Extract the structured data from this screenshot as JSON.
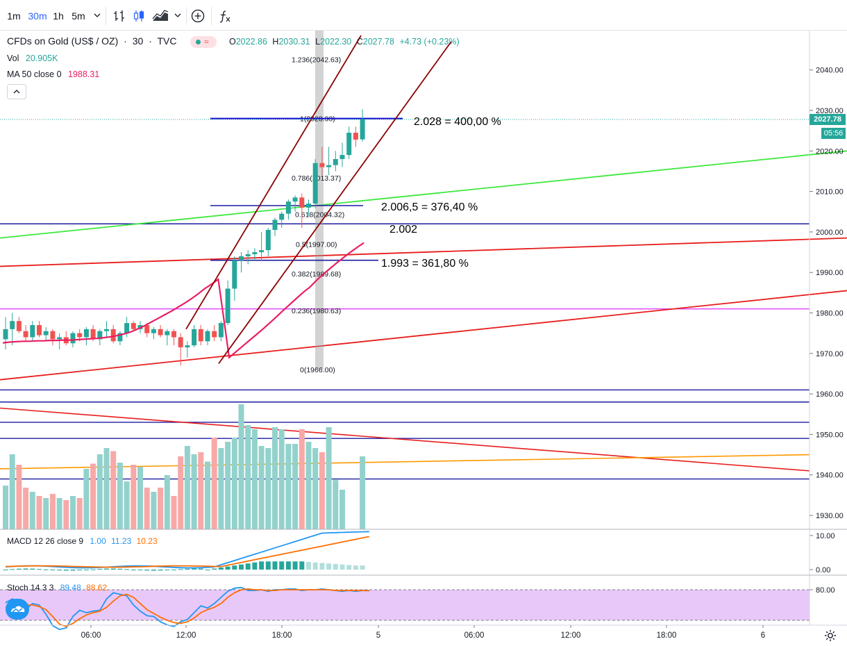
{
  "toolbar": {
    "intervals": [
      "1m",
      "30m",
      "1h",
      "5m"
    ],
    "active_interval": "30m",
    "icons": [
      "chevron-down-icon",
      "bar-chart-icon",
      "candles-icon",
      "area-chart-icon",
      "chevron-down-icon",
      "add-indicator-icon",
      "fx-icon"
    ]
  },
  "legend": {
    "symbol": "CFDs on Gold (US$ / OZ)",
    "interval": "30",
    "source": "TVC",
    "open_label": "O",
    "open": "2022.86",
    "high_label": "H",
    "high": "2030.31",
    "low_label": "L",
    "low": "2022.30",
    "close_label": "C",
    "close": "2027.78",
    "change": "+4.73 (+0.23%)",
    "vol_label": "Vol",
    "vol_value": "20.905K",
    "ma_label": "MA 50 close 0",
    "ma_value": "1988.31",
    "collapse_glyph": "^"
  },
  "price_axis": {
    "ticks": [
      "2040.00",
      "2030.00",
      "2020.00",
      "2010.00",
      "2000.00",
      "1990.00",
      "1980.00",
      "1970.00",
      "1960.00",
      "1950.00",
      "1940.00",
      "1930.00"
    ],
    "last_price": "2027.78",
    "countdown": "05:56"
  },
  "annotations": {
    "a1": "2.028 = 400,00 %",
    "a2": "2.006,5 = 376,40 %",
    "a3": "2.002",
    "a4": "1.993 = 361,80 %"
  },
  "fib_labels": {
    "f1236": "1.236(2042.63)",
    "f1": "1(2028.00)",
    "f786": "0.786(2013.37)",
    "f618": "0.618(2004.32)",
    "f5": "0.5(1997.00)",
    "f382": "0.382(1989.68)",
    "f236": "0.236(1980.63)",
    "f0": "0(1966.00)"
  },
  "macd": {
    "label": "MACD 12 26 close 9",
    "v1": "1.00",
    "v2": "11.23",
    "v3": "10.23",
    "ticks": [
      "10.00",
      "0.00"
    ]
  },
  "stoch": {
    "label": "Stoch 14 3 3",
    "v1": "89.48",
    "v2": "88.62",
    "ticks": [
      "80.00"
    ]
  },
  "time_axis": {
    "ticks": [
      "06:00",
      "12:00",
      "18:00",
      "5",
      "06:00",
      "12:00",
      "18:00",
      "6"
    ]
  },
  "colors": {
    "up": "#26a69a",
    "down": "#ef5350",
    "ma": "#e91e63",
    "fib_gray": "#9e9e9e",
    "blue_level": "#1a1aa0",
    "red_line": "#e81c1c",
    "green_line": "#3ce83c",
    "channel": "#8b0000",
    "orange": "#ff9800",
    "magenta": "#e040fb",
    "stoch_bg": "#e8c8f8"
  },
  "chart_data": {
    "type": "candlestick",
    "series": [
      {
        "name": "CFDs on Gold (US$ / OZ)",
        "ohlc": [
          [
            1973.5,
            1979,
            1971,
            1976
          ],
          [
            1976,
            1980,
            1972,
            1978
          ],
          [
            1978,
            1979,
            1975,
            1975.5
          ],
          [
            1975.5,
            1977,
            1973,
            1974
          ],
          [
            1974,
            1978,
            1973,
            1977
          ],
          [
            1977,
            1978,
            1974,
            1974.5
          ],
          [
            1974.5,
            1976.5,
            1973,
            1975.5
          ],
          [
            1975.5,
            1976,
            1972,
            1973.5
          ],
          [
            1973.5,
            1975,
            1971,
            1974
          ],
          [
            1974,
            1975.5,
            1972,
            1972.5
          ],
          [
            1972.5,
            1975.5,
            1971.5,
            1975
          ],
          [
            1975,
            1976,
            1973,
            1974
          ],
          [
            1974,
            1976.5,
            1972,
            1976
          ],
          [
            1976,
            1977,
            1973,
            1973.5
          ],
          [
            1973.5,
            1976,
            1972,
            1975.5
          ],
          [
            1975.5,
            1978,
            1974,
            1976
          ],
          [
            1976,
            1977,
            1972.5,
            1973
          ],
          [
            1973,
            1975.5,
            1972,
            1975
          ],
          [
            1975,
            1979,
            1974,
            1977.5
          ],
          [
            1977.5,
            1978,
            1975.5,
            1976
          ],
          [
            1976,
            1978,
            1975,
            1977
          ],
          [
            1977,
            1977.5,
            1974,
            1975
          ],
          [
            1975,
            1976.5,
            1973.5,
            1976
          ],
          [
            1976,
            1977,
            1974,
            1974.5
          ],
          [
            1974.5,
            1976,
            1972,
            1975.5
          ],
          [
            1975.5,
            1976,
            1972,
            1974
          ],
          [
            1974,
            1975,
            1967,
            1971.5
          ],
          [
            1971.5,
            1973,
            1969,
            1972
          ],
          [
            1972,
            1977,
            1971.5,
            1976
          ],
          [
            1976,
            1977,
            1972,
            1973
          ],
          [
            1973,
            1976,
            1972,
            1975.5
          ],
          [
            1975.5,
            1977,
            1973,
            1974
          ],
          [
            1974,
            1978,
            1973,
            1977.5
          ],
          [
            1977.5,
            1988,
            1977,
            1986
          ],
          [
            1986,
            1994,
            1983,
            1993
          ],
          [
            1993,
            1995,
            1990,
            1994
          ],
          [
            1994,
            1995.5,
            1992,
            1994.5
          ],
          [
            1994.5,
            1996,
            1993,
            1995
          ],
          [
            1995,
            2000,
            1993,
            1995.5
          ],
          [
            1995.5,
            2001,
            1994,
            2000.5
          ],
          [
            2000.5,
            2003.5,
            1999,
            2003
          ],
          [
            2003,
            2005,
            2001,
            2004.5
          ],
          [
            2004.5,
            2008,
            2003,
            2007.5
          ],
          [
            2007.5,
            2009,
            2005,
            2008.5
          ],
          [
            2008.5,
            2009.5,
            2001,
            2006
          ],
          [
            2006,
            2008,
            2004,
            2007
          ],
          [
            2007,
            2018,
            2006,
            2017
          ],
          [
            2017,
            2021,
            2014,
            2016
          ],
          [
            2016,
            2021,
            2014,
            2016.5
          ],
          [
            2016.5,
            2020,
            2015,
            2018
          ],
          [
            2018,
            2022,
            2016,
            2019
          ],
          [
            2019,
            2026,
            2018,
            2024.5
          ],
          [
            2024.5,
            2026,
            2021,
            2022.8
          ],
          [
            2022.86,
            2030.31,
            2022.3,
            2027.78
          ]
        ],
        "volume_rel": [
          0.42,
          0.72,
          0.62,
          0.4,
          0.36,
          0.32,
          0.3,
          0.34,
          0.3,
          0.28,
          0.32,
          0.3,
          0.58,
          0.63,
          0.72,
          0.78,
          0.75,
          0.64,
          0.46,
          0.62,
          0.6,
          0.4,
          0.36,
          0.4,
          0.52,
          0.32,
          0.7,
          0.8,
          0.72,
          0.74,
          0.65,
          0.88,
          0.78,
          0.84,
          0.88,
          1.2,
          1.0,
          0.96,
          0.8,
          0.78,
          0.98,
          0.96,
          0.82,
          0.82,
          0.96,
          0.84,
          0.78,
          0.74,
          0.98,
          0.48,
          0.38,
          0.0,
          0.0,
          0.7
        ]
      }
    ],
    "ma50": [
      1972.6,
      1972.8,
      1972.9,
      1973.0,
      1973.0,
      1973.1,
      1973.1,
      1973.2,
      1973.2,
      1973.3,
      1973.3,
      1973.4,
      1973.5,
      1973.6,
      1973.7,
      1973.9,
      1974.1,
      1974.4,
      1974.8,
      1975.3,
      1976.0,
      1976.8,
      1977.7,
      1978.6,
      1979.5,
      1980.4,
      1981.4,
      1982.4,
      1983.5,
      1984.7,
      1986.0,
      1987.1,
      1988.31
    ],
    "ylim": [
      1927.5,
      2048
    ]
  }
}
